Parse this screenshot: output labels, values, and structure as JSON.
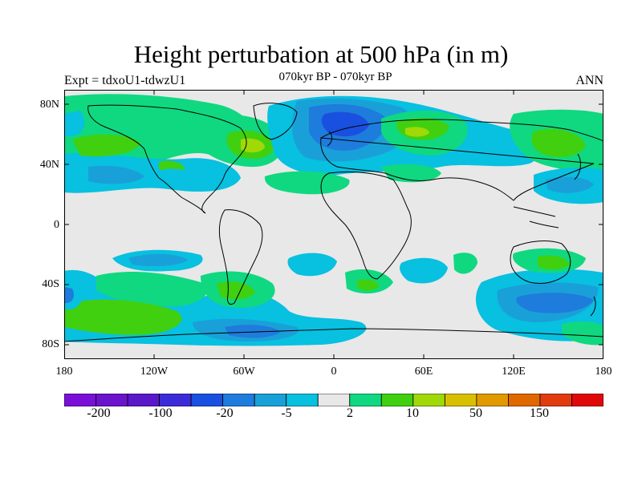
{
  "title": "Height perturbation at 500 hPa (in m)",
  "subtitle": "070kyr BP - 070kyr BP",
  "experiment": "Expt = tdxoU1-tdwzU1",
  "season": "ANN",
  "lat_labels": [
    "80N",
    "40N",
    "0",
    "40S",
    "80S"
  ],
  "lon_labels": [
    "180",
    "120W",
    "60W",
    "0",
    "60E",
    "120E",
    "180"
  ],
  "colorbar": {
    "colors": [
      "#7a10d8",
      "#6a14cc",
      "#5a18c8",
      "#3c2cd8",
      "#1a50e0",
      "#1e7cdc",
      "#1aa0d8",
      "#08c0e0",
      "#e8e8e8",
      "#10d880",
      "#40d010",
      "#a0d808",
      "#d8c000",
      "#e09a00",
      "#e06800",
      "#e03c10",
      "#e00808"
    ],
    "labels": [
      "-200",
      "-100",
      "-20",
      "-5",
      "2",
      "10",
      "50",
      "150"
    ]
  },
  "palette": {
    "ocean_bg": "#e8e8e8",
    "cyan": "#08c0e0",
    "light_blue": "#1aa0d8",
    "blue": "#1e7cdc",
    "dark_blue": "#1a50e0",
    "green": "#10d880",
    "lime": "#40d010",
    "yellow_green": "#a0d808"
  }
}
